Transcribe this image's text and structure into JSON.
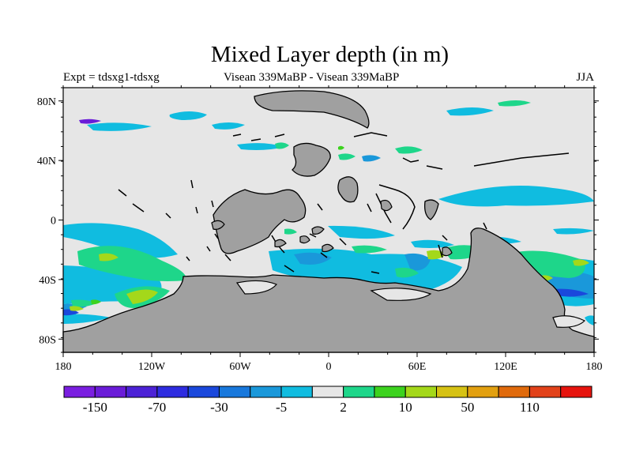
{
  "title": "Mixed Layer depth (in m)",
  "subtitle_left": "Expt = tdsxg1-tdsxg",
  "subtitle_center": "Visean 339MaBP - Visean 339MaBP",
  "subtitle_right": "JJA",
  "colors": {
    "ocean_background": "#e6e6e6",
    "land": "#a0a0a0"
  },
  "lon_ticks": [
    "180",
    "120W",
    "60W",
    "0",
    "60E",
    "120E",
    "180"
  ],
  "lat_ticks": [
    "80N",
    "40N",
    "0",
    "40S",
    "80S"
  ],
  "colorbar": {
    "colors": [
      "#7a1ee0",
      "#6a1cd8",
      "#4c22d6",
      "#2e2ce0",
      "#1a48dc",
      "#1878dc",
      "#1a98da",
      "#10bce0",
      "#e6e6e6",
      "#1ed68a",
      "#3cd21e",
      "#a4d81a",
      "#d6c214",
      "#e2a010",
      "#e06a0c",
      "#e2421a",
      "#e6140e"
    ],
    "labels": [
      {
        "text": "-150",
        "boundary": 1
      },
      {
        "text": "-70",
        "boundary": 3
      },
      {
        "text": "-30",
        "boundary": 5
      },
      {
        "text": "-5",
        "boundary": 7
      },
      {
        "text": "2",
        "boundary": 9
      },
      {
        "text": "10",
        "boundary": 11
      },
      {
        "text": "50",
        "boundary": 13
      },
      {
        "text": "110",
        "boundary": 15
      }
    ]
  }
}
